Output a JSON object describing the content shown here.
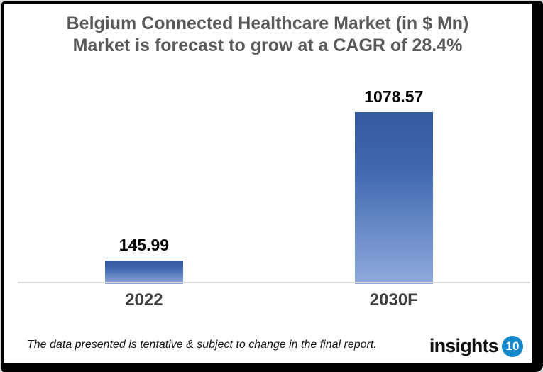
{
  "chart_data": {
    "type": "bar",
    "title": "Belgium Connected Healthcare Market (in $ Mn)",
    "subtitle": "Market is forecast to grow at a CAGR of 28.4%",
    "categories": [
      "2022",
      "2030F"
    ],
    "values": [
      145.99,
      1078.57
    ],
    "value_labels": [
      "145.99",
      "1078.57"
    ],
    "units": "$ Mn",
    "cagr": "28.4%",
    "xlabel": "",
    "ylabel": "",
    "ylim": [
      0,
      1180
    ],
    "grid": false,
    "legend": false,
    "bar_colors": {
      "gradient_top": "#35599E",
      "gradient_mid": "#4169B0",
      "gradient_bottom": "#8FAADC"
    },
    "axis_line_color": "#D9D9D9",
    "title_color": "#595959",
    "data_label_color": "#000000",
    "category_label_color": "#3F3F3F"
  },
  "footer": {
    "disclaimer": "The data presented is tentative & subject to change in the final report.",
    "logo_text": "insights",
    "logo_badge": "10",
    "logo_badge_color": "#1488CB"
  }
}
